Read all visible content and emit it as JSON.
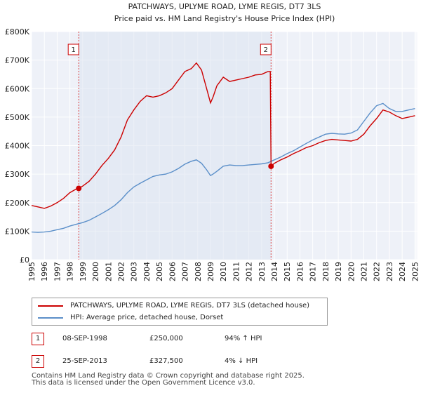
{
  "chart_data": {
    "type": "line",
    "title": "PATCHWAYS, UPLYME ROAD, LYME REGIS, DT7 3LS",
    "subtitle": "Price paid vs. HM Land Registry's House Price Index (HPI)",
    "xlabel": "",
    "ylabel": "",
    "xlim": [
      1995,
      2025.2
    ],
    "ylim": [
      0,
      800000
    ],
    "y_ticks": [
      0,
      100000,
      200000,
      300000,
      400000,
      500000,
      600000,
      700000,
      800000
    ],
    "y_tick_labels": [
      "£0",
      "£100K",
      "£200K",
      "£300K",
      "£400K",
      "£500K",
      "£600K",
      "£700K",
      "£800K"
    ],
    "x_ticks": [
      1995,
      1996,
      1997,
      1998,
      1999,
      2000,
      2001,
      2002,
      2003,
      2004,
      2005,
      2006,
      2007,
      2008,
      2009,
      2010,
      2011,
      2012,
      2013,
      2014,
      2015,
      2016,
      2017,
      2018,
      2019,
      2020,
      2021,
      2022,
      2023,
      2024,
      2025
    ],
    "x_tick_labels": [
      "1995",
      "1996",
      "1997",
      "1998",
      "1999",
      "2000",
      "2001",
      "2002",
      "2003",
      "2004",
      "2005",
      "2006",
      "2007",
      "2008",
      "2009",
      "2010",
      "2011",
      "2012",
      "2013",
      "2014",
      "2015",
      "2016",
      "2017",
      "2018",
      "2019",
      "2020",
      "2021",
      "2022",
      "2023",
      "2024",
      "2025"
    ],
    "grid": true,
    "series": [
      {
        "name": "PATCHWAYS, UPLYME ROAD, LYME REGIS, DT7 3LS (detached house)",
        "color": "#cc0000",
        "x": [
          1995.0,
          1995.5,
          1996.0,
          1996.5,
          1997.0,
          1997.5,
          1998.0,
          1998.5,
          1998.69,
          1999.0,
          1999.5,
          2000.0,
          2000.5,
          2001.0,
          2001.5,
          2002.0,
          2002.5,
          2003.0,
          2003.5,
          2004.0,
          2004.5,
          2005.0,
          2005.5,
          2006.0,
          2006.5,
          2007.0,
          2007.5,
          2007.9,
          2008.3,
          2008.7,
          2009.0,
          2009.2,
          2009.5,
          2010.0,
          2010.5,
          2011.0,
          2011.5,
          2012.0,
          2012.5,
          2013.0,
          2013.5,
          2013.68,
          2013.74,
          2014.0,
          2014.5,
          2015.0,
          2015.5,
          2016.0,
          2016.5,
          2017.0,
          2017.5,
          2018.0,
          2018.5,
          2019.0,
          2019.5,
          2020.0,
          2020.5,
          2021.0,
          2021.5,
          2022.0,
          2022.5,
          2023.0,
          2023.5,
          2024.0,
          2024.5,
          2025.0
        ],
        "y": [
          190000,
          185000,
          180000,
          188000,
          200000,
          215000,
          235000,
          248000,
          250000,
          258000,
          275000,
          300000,
          330000,
          355000,
          385000,
          430000,
          490000,
          525000,
          555000,
          575000,
          570000,
          575000,
          585000,
          600000,
          630000,
          660000,
          670000,
          690000,
          665000,
          600000,
          550000,
          570000,
          610000,
          640000,
          625000,
          630000,
          635000,
          640000,
          648000,
          650000,
          660000,
          660000,
          327500,
          338000,
          350000,
          360000,
          372000,
          382000,
          393000,
          400000,
          410000,
          418000,
          422000,
          420000,
          418000,
          416000,
          422000,
          440000,
          470000,
          495000,
          525000,
          518000,
          505000,
          495000,
          500000,
          505000
        ]
      },
      {
        "name": "HPI: Average price, detached house, Dorset",
        "color": "#5b8fc9",
        "x": [
          1995.0,
          1995.5,
          1996.0,
          1996.5,
          1997.0,
          1997.5,
          1998.0,
          1998.5,
          1999.0,
          1999.5,
          2000.0,
          2000.5,
          2001.0,
          2001.5,
          2002.0,
          2002.5,
          2003.0,
          2003.5,
          2004.0,
          2004.5,
          2005.0,
          2005.5,
          2006.0,
          2006.5,
          2007.0,
          2007.5,
          2007.9,
          2008.3,
          2008.7,
          2009.0,
          2009.2,
          2009.5,
          2010.0,
          2010.5,
          2011.0,
          2011.5,
          2012.0,
          2012.5,
          2013.0,
          2013.5,
          2014.0,
          2014.5,
          2015.0,
          2015.5,
          2016.0,
          2016.5,
          2017.0,
          2017.5,
          2018.0,
          2018.5,
          2019.0,
          2019.5,
          2020.0,
          2020.5,
          2021.0,
          2021.5,
          2022.0,
          2022.5,
          2023.0,
          2023.5,
          2024.0,
          2024.5,
          2025.0
        ],
        "y": [
          97000,
          96000,
          97000,
          100000,
          105000,
          110000,
          118000,
          124000,
          130000,
          138000,
          150000,
          162000,
          175000,
          190000,
          210000,
          235000,
          255000,
          268000,
          280000,
          292000,
          297000,
          300000,
          308000,
          320000,
          335000,
          345000,
          350000,
          338000,
          315000,
          295000,
          300000,
          310000,
          328000,
          332000,
          330000,
          330000,
          332000,
          334000,
          336000,
          340000,
          350000,
          360000,
          372000,
          382000,
          395000,
          408000,
          420000,
          430000,
          440000,
          443000,
          441000,
          440000,
          444000,
          455000,
          485000,
          515000,
          540000,
          548000,
          530000,
          520000,
          520000,
          525000,
          530000
        ]
      }
    ],
    "markers": [
      {
        "id": "1",
        "x": 1998.69,
        "y": 250000
      },
      {
        "id": "2",
        "x": 2013.74,
        "y": 327500
      }
    ]
  },
  "legend": {
    "entries": [
      {
        "label": "PATCHWAYS, UPLYME ROAD, LYME REGIS, DT7 3LS (detached house)",
        "color": "#cc0000"
      },
      {
        "label": "HPI: Average price, detached house, Dorset",
        "color": "#5b8fc9"
      }
    ]
  },
  "transactions": [
    {
      "id": "1",
      "date": "08-SEP-1998",
      "price": "£250,000",
      "hpi_diff": "94% ↑ HPI"
    },
    {
      "id": "2",
      "date": "25-SEP-2013",
      "price": "£327,500",
      "hpi_diff": "4% ↓ HPI"
    }
  ],
  "footer": {
    "line1": "Contains HM Land Registry data © Crown copyright and database right 2025.",
    "line2": "This data is licensed under the Open Government Licence v3.0."
  }
}
